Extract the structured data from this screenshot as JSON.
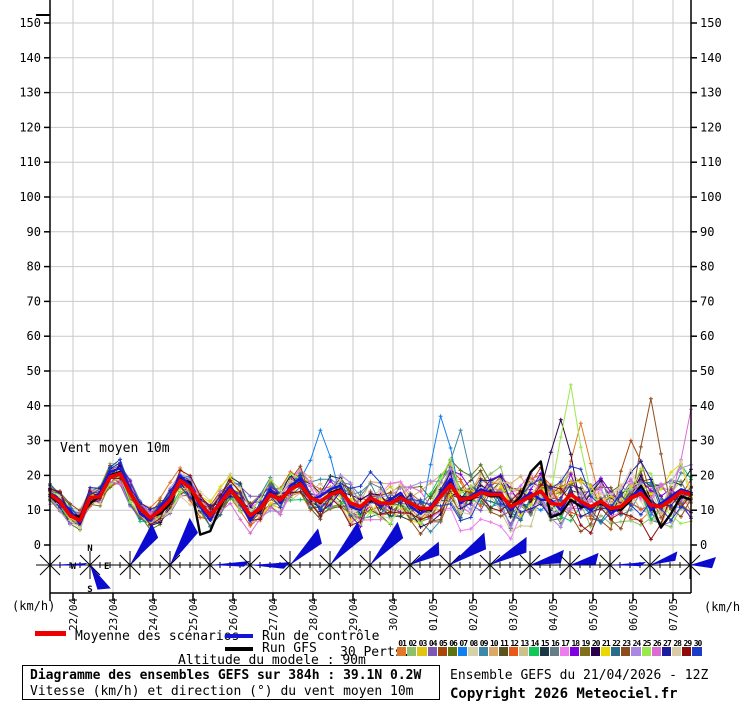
{
  "header": {
    "title": "Vent moyen 10m"
  },
  "axis": {
    "unit_left": "(km/h)",
    "unit_right": "(km/h)"
  },
  "legend": {
    "mean_label": "Moyenne des scénarios",
    "control_label": "Run de contrôle",
    "gfs_label": "Run GFS",
    "perts_label": "30 Perts.",
    "altitude_note": "Altitude du modele : 90m",
    "mean_color": "#ee0000",
    "control_color": "#1515d8",
    "gfs_color": "#000000",
    "arrow_color": "#0b0bd0"
  },
  "compass": {
    "n": "N",
    "s": "S",
    "e": "E",
    "w": "W"
  },
  "perturbations": {
    "numbers": [
      "01",
      "02",
      "03",
      "04",
      "05",
      "06",
      "07",
      "08",
      "09",
      "10",
      "11",
      "12",
      "13",
      "14",
      "15",
      "16",
      "17",
      "18",
      "19",
      "20",
      "21",
      "22",
      "23",
      "24",
      "25",
      "26",
      "27",
      "28",
      "29",
      "30"
    ],
    "colors": [
      "#e07828",
      "#8cc06c",
      "#e0c410",
      "#7c58b4",
      "#a84808",
      "#5c7410",
      "#1080f0",
      "#d8d0a8",
      "#3c88a8",
      "#dca868",
      "#5c5420",
      "#e85818",
      "#ccc08c",
      "#10c858",
      "#1c3844",
      "#667c88",
      "#ee7cee",
      "#8000e0",
      "#80701c",
      "#28004c",
      "#e8d800",
      "#2a6c8c",
      "#8c4c1c",
      "#a888e0",
      "#9ce84c",
      "#dc6cd4",
      "#1c1c9c",
      "#d8cca4",
      "#8c0c0c",
      "#1c3cc8"
    ]
  },
  "footer": {
    "box_line1": "Diagramme des ensembles GEFS sur 384h : 39.1N 0.2W",
    "box_line2": "Vitesse (km/h) et direction (°) du vent moyen 10m",
    "run_info": "Ensemble GEFS du 21/04/2026 - 12Z",
    "copyright": "Copyright 2026 Meteociel.fr"
  },
  "chart_data": {
    "type": "line",
    "title": "Vent moyen 10m",
    "ylabel": "km/h",
    "ylim": [
      0,
      155
    ],
    "yticks": [
      0,
      10,
      20,
      30,
      40,
      50,
      60,
      70,
      80,
      90,
      100,
      110,
      120,
      130,
      140,
      150
    ],
    "grid": true,
    "hours_total": 384,
    "hours_step": 6,
    "categories": [
      "22/04",
      "23/04",
      "24/04",
      "25/04",
      "26/04",
      "27/04",
      "28/04",
      "29/04",
      "30/04",
      "01/05",
      "02/05",
      "03/05",
      "04/05",
      "05/05",
      "06/05",
      "07/05"
    ],
    "series": [
      {
        "name": "Moyenne des scénarios",
        "color": "#ee0000",
        "values": [
          14.5,
          12.5,
          8.5,
          7,
          13.5,
          14,
          19.5,
          20.5,
          15,
          10.5,
          7.8,
          10,
          13,
          18.5,
          16.5,
          12,
          8.5,
          12,
          15.8,
          12.5,
          8.5,
          10.5,
          14.5,
          13,
          16,
          17.5,
          13.5,
          12.5,
          14.5,
          15.5,
          12,
          11,
          13.5,
          12,
          12,
          13.5,
          12,
          10.5,
          10.5,
          14,
          17.3,
          13,
          13.5,
          15,
          14.5,
          14.5,
          11,
          12.5,
          14,
          15.5,
          12,
          11.5,
          14.5,
          12.5,
          11,
          12.5,
          10.5,
          11,
          13.5,
          14.8,
          11.5,
          11,
          13,
          15.3,
          14.5
        ]
      },
      {
        "name": "Run de contrôle",
        "color": "#1515d8",
        "values": [
          15,
          13,
          10,
          6,
          13,
          15,
          21,
          22,
          16,
          9,
          7,
          11,
          14,
          20,
          17,
          11,
          7,
          13,
          17,
          12,
          7,
          11,
          16,
          12,
          17,
          19,
          13,
          14,
          16,
          17,
          11,
          10,
          14,
          11,
          13,
          15,
          11,
          9,
          11,
          15,
          19,
          12,
          14,
          16,
          15,
          15,
          10,
          13,
          15,
          13,
          13,
          10,
          15,
          12,
          10,
          13,
          9,
          11,
          14,
          16,
          10,
          12,
          14,
          16,
          15
        ]
      },
      {
        "name": "Run GFS",
        "color": "#000000",
        "values": [
          14,
          12,
          9,
          8,
          12,
          14,
          20,
          21,
          15,
          10,
          8,
          9,
          12,
          19,
          18,
          3,
          4,
          11,
          16,
          13,
          8,
          10,
          15,
          13,
          16,
          18,
          14,
          12,
          15,
          16,
          12,
          11,
          13,
          12,
          12,
          14,
          12,
          10,
          10,
          14,
          18,
          13,
          13,
          15,
          14,
          14,
          11,
          14,
          21,
          24,
          8,
          9,
          13,
          11,
          11,
          12,
          10,
          10,
          13,
          17,
          12,
          5,
          9,
          14,
          13
        ]
      }
    ],
    "ensemble": {
      "count": 30,
      "spread": [
        5,
        5,
        5,
        5,
        5,
        5,
        6,
        6,
        6,
        5,
        5,
        5,
        6,
        6,
        6,
        6,
        6,
        6,
        6,
        7,
        7,
        7,
        7,
        7,
        8,
        8,
        8,
        9,
        9,
        9,
        9,
        9,
        9,
        10,
        10,
        9,
        9,
        10,
        10,
        11,
        11,
        11,
        10,
        10,
        10,
        10,
        11,
        11,
        11,
        11,
        12,
        12,
        13,
        13,
        12,
        12,
        12,
        12,
        12,
        13,
        13,
        13,
        13,
        14,
        14
      ],
      "outliers": [
        {
          "member": 7,
          "i": 27,
          "value": 33
        },
        {
          "member": 7,
          "i": 39,
          "value": 37
        },
        {
          "member": 9,
          "i": 41,
          "value": 33
        },
        {
          "member": 20,
          "i": 51,
          "value": 36
        },
        {
          "member": 25,
          "i": 52,
          "value": 46
        },
        {
          "member": 1,
          "i": 53,
          "value": 35
        },
        {
          "member": 5,
          "i": 58,
          "value": 30
        },
        {
          "member": 23,
          "i": 60,
          "value": 42
        },
        {
          "member": 26,
          "i": 64,
          "value": 39
        }
      ]
    },
    "wind_arrows": [
      {
        "angle": 0,
        "len": 38,
        "w": 2
      },
      {
        "angle": -65,
        "len": 30,
        "w": 9
      },
      {
        "angle": 50,
        "len": 46,
        "w": 10
      },
      {
        "angle": 55,
        "len": 50,
        "w": 11
      },
      {
        "angle": 0,
        "len": 40,
        "w": 4
      },
      {
        "angle": -3,
        "len": 40,
        "w": 5
      },
      {
        "angle": 40,
        "len": 45,
        "w": 10
      },
      {
        "angle": 45,
        "len": 50,
        "w": 11
      },
      {
        "angle": 45,
        "len": 50,
        "w": 11
      },
      {
        "angle": 25,
        "len": 36,
        "w": 9
      },
      {
        "angle": 30,
        "len": 46,
        "w": 11
      },
      {
        "angle": 25,
        "len": 45,
        "w": 10
      },
      {
        "angle": 10,
        "len": 36,
        "w": 9
      },
      {
        "angle": 8,
        "len": 30,
        "w": 8
      },
      {
        "angle": 0,
        "len": 36,
        "w": 3
      },
      {
        "angle": 15,
        "len": 30,
        "w": 6
      },
      {
        "angle": 0,
        "len": 26,
        "w": 8
      }
    ]
  }
}
